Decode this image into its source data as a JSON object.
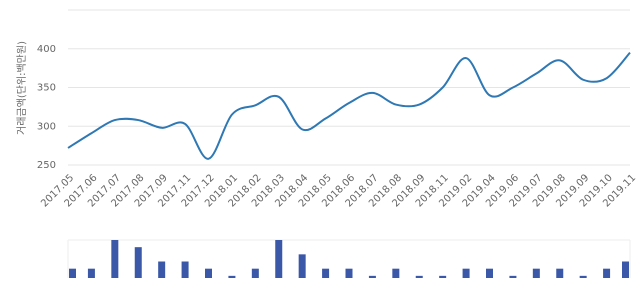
{
  "chart_data": [
    {
      "type": "line",
      "y_label": "거래금액(단위:백만원)",
      "categories": [
        "2017.05",
        "2017.06",
        "2017.07",
        "2017.08",
        "2017.09",
        "2017.11",
        "2017.12",
        "2018.01",
        "2018.02",
        "2018.03",
        "2018.04",
        "2018.05",
        "2018.06",
        "2018.07",
        "2018.08",
        "2018.09",
        "2018.11",
        "2019.02",
        "2019.04",
        "2019.06",
        "2019.07",
        "2019.08",
        "2019.09",
        "2019.10",
        "2019.11"
      ],
      "values": [
        272,
        291,
        308,
        308,
        298,
        303,
        258,
        315,
        327,
        338,
        296,
        310,
        330,
        343,
        328,
        328,
        350,
        388,
        340,
        350,
        368,
        385,
        360,
        362,
        395
      ],
      "color": "#2e78b4",
      "ylim": [
        250,
        450
      ],
      "yticks": [
        250,
        300,
        350,
        400
      ],
      "grid": true
    },
    {
      "type": "bar",
      "values": [
        2,
        2,
        6,
        5,
        3,
        3,
        2,
        1,
        2,
        6,
        4,
        2,
        2,
        1,
        2,
        1,
        1,
        2,
        2,
        1,
        2,
        2,
        1,
        2,
        3
      ],
      "color": "#3b58a8",
      "ylim": [
        0.7,
        6
      ]
    }
  ]
}
